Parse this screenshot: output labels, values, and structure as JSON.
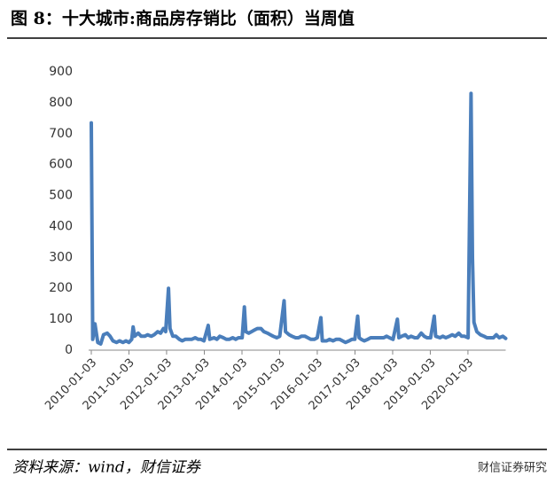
{
  "chart_data": {
    "type": "line",
    "title": "图 8：十大城市:商品房存销比（面积）当周值",
    "x": [
      "2010-01-03",
      "2010-01-17",
      "2010-02-07",
      "2010-03-07",
      "2010-04-04",
      "2010-05-02",
      "2010-06-06",
      "2010-07-04",
      "2010-08-01",
      "2010-09-05",
      "2010-10-03",
      "2010-11-07",
      "2010-12-05",
      "2011-01-02",
      "2011-01-30",
      "2011-02-13",
      "2011-02-27",
      "2011-04-03",
      "2011-05-01",
      "2011-06-05",
      "2011-07-03",
      "2011-08-07",
      "2011-09-04",
      "2011-10-09",
      "2011-11-06",
      "2011-12-04",
      "2011-12-25",
      "2012-01-22",
      "2012-02-05",
      "2012-03-04",
      "2012-04-01",
      "2012-05-06",
      "2012-06-03",
      "2012-07-01",
      "2012-08-05",
      "2012-09-02",
      "2012-10-07",
      "2012-11-04",
      "2012-12-02",
      "2012-12-30",
      "2013-02-10",
      "2013-02-24",
      "2013-04-07",
      "2013-05-05",
      "2013-06-02",
      "2013-07-07",
      "2013-08-04",
      "2013-09-01",
      "2013-10-06",
      "2013-11-03",
      "2013-12-01",
      "2014-01-05",
      "2014-01-26",
      "2014-02-09",
      "2014-03-09",
      "2014-04-06",
      "2014-05-04",
      "2014-06-01",
      "2014-07-06",
      "2014-08-03",
      "2014-09-07",
      "2014-10-05",
      "2014-11-02",
      "2014-12-07",
      "2015-01-04",
      "2015-02-15",
      "2015-03-01",
      "2015-04-05",
      "2015-05-03",
      "2015-06-07",
      "2015-07-05",
      "2015-08-02",
      "2015-09-06",
      "2015-10-04",
      "2015-11-01",
      "2015-12-06",
      "2016-01-03",
      "2016-02-07",
      "2016-02-21",
      "2016-04-03",
      "2016-05-01",
      "2016-06-05",
      "2016-07-03",
      "2016-08-07",
      "2016-09-04",
      "2016-10-02",
      "2016-11-06",
      "2016-12-04",
      "2017-01-01",
      "2017-01-29",
      "2017-02-12",
      "2017-03-05",
      "2017-04-02",
      "2017-05-07",
      "2017-06-04",
      "2017-07-02",
      "2017-08-06",
      "2017-09-03",
      "2017-10-08",
      "2017-11-05",
      "2017-12-03",
      "2018-01-07",
      "2018-02-18",
      "2018-03-04",
      "2018-04-01",
      "2018-05-06",
      "2018-06-03",
      "2018-07-01",
      "2018-08-05",
      "2018-09-02",
      "2018-10-07",
      "2018-11-04",
      "2018-12-02",
      "2019-01-06",
      "2019-02-10",
      "2019-02-24",
      "2019-04-07",
      "2019-05-05",
      "2019-06-02",
      "2019-07-07",
      "2019-08-04",
      "2019-09-01",
      "2019-10-06",
      "2019-11-03",
      "2019-12-01",
      "2020-01-05",
      "2020-02-02",
      "2020-02-16",
      "2020-03-01",
      "2020-03-29",
      "2020-05-03",
      "2020-06-07",
      "2020-07-05",
      "2020-08-02",
      "2020-09-06",
      "2020-10-04",
      "2020-11-01",
      "2020-12-06",
      "2021-01-03"
    ],
    "series": [
      {
        "color": "#4a7ebb",
        "values": [
          735,
          35,
          85,
          25,
          20,
          50,
          55,
          45,
          30,
          25,
          30,
          25,
          30,
          25,
          35,
          75,
          45,
          55,
          45,
          45,
          50,
          45,
          50,
          60,
          55,
          70,
          60,
          200,
          70,
          45,
          45,
          35,
          30,
          35,
          35,
          35,
          40,
          35,
          35,
          30,
          80,
          35,
          40,
          35,
          45,
          40,
          35,
          35,
          40,
          35,
          40,
          40,
          140,
          60,
          55,
          60,
          65,
          70,
          70,
          60,
          55,
          50,
          45,
          40,
          45,
          160,
          60,
          50,
          45,
          40,
          40,
          45,
          45,
          40,
          35,
          35,
          40,
          105,
          30,
          30,
          35,
          30,
          35,
          35,
          30,
          25,
          30,
          35,
          35,
          110,
          40,
          35,
          30,
          35,
          40,
          40,
          40,
          40,
          40,
          45,
          40,
          35,
          100,
          40,
          45,
          50,
          40,
          45,
          40,
          40,
          55,
          45,
          40,
          40,
          110,
          45,
          40,
          45,
          40,
          45,
          50,
          45,
          55,
          45,
          45,
          40,
          830,
          300,
          90,
          60,
          50,
          45,
          40,
          40,
          40,
          50,
          40,
          45,
          38
        ]
      }
    ],
    "xlim": [
      "2010-01-03",
      "2021-01-03"
    ],
    "xticks": [
      "2010-01-03",
      "2011-01-03",
      "2012-01-03",
      "2013-01-03",
      "2014-01-03",
      "2015-01-03",
      "2016-01-03",
      "2017-01-03",
      "2018-01-03",
      "2019-01-03",
      "2020-01-03"
    ],
    "ylim": [
      0,
      900
    ],
    "yticks": [
      0,
      100,
      200,
      300,
      400,
      500,
      600,
      700,
      800,
      900
    ],
    "grid": false
  },
  "source": "资料来源：wind，财信证券",
  "watermark": "财信证券研究"
}
